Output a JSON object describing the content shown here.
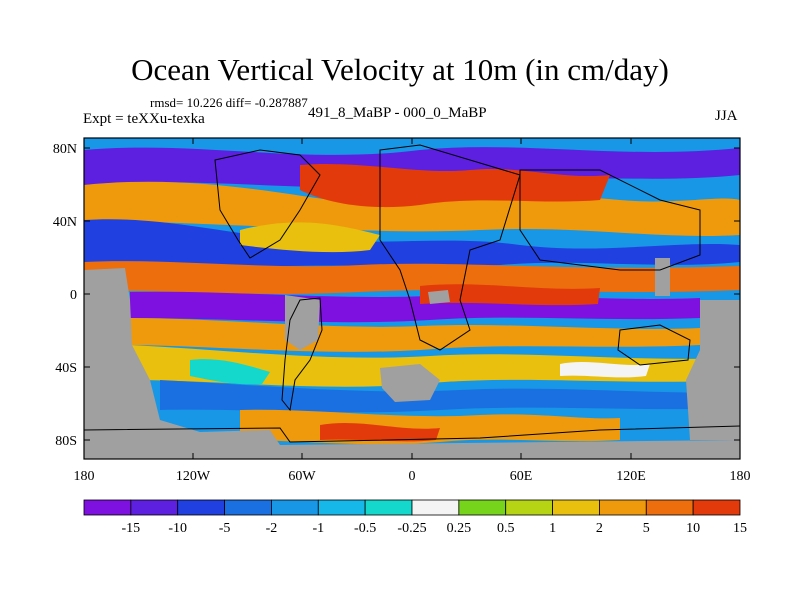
{
  "title": "Ocean Vertical Velocity at 10m (in cm/day)",
  "stats": "rmsd= 10.226 diff= -0.287887",
  "experiment": "Expt = teXXu-texka",
  "center_label": "491_8_MaBP - 000_0_MaBP",
  "season": "JJA",
  "y_ticks": [
    "80N",
    "40N",
    "0",
    "40S",
    "80S"
  ],
  "x_ticks": [
    "180",
    "120W",
    "60W",
    "0",
    "60E",
    "120E",
    "180"
  ],
  "colorbar": {
    "labels": [
      "-15",
      "-10",
      "-5",
      "-2",
      "-1",
      "-0.5",
      "-0.25",
      "0.25",
      "0.5",
      "1",
      "2",
      "5",
      "10",
      "15"
    ],
    "colors": [
      "#7e10e0",
      "#5d1fe0",
      "#2040e0",
      "#1a70e0",
      "#1797e6",
      "#15b8e8",
      "#14d8cc",
      "#f4f4f4",
      "#76d51a",
      "#b6d414",
      "#e8c00d",
      "#ee9a0c",
      "#ec6e0c",
      "#e23a0a"
    ]
  },
  "land_color": "#a0a0a0"
}
